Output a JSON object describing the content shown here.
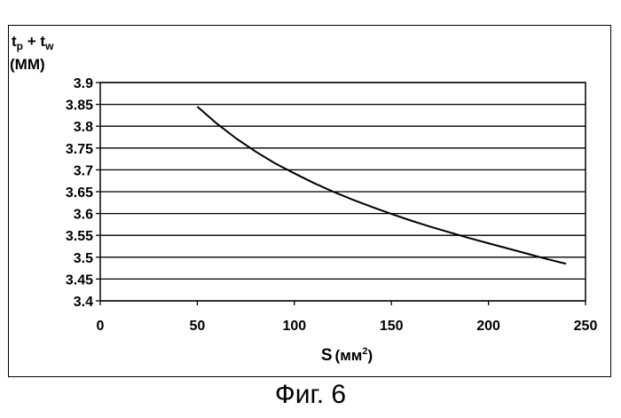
{
  "chart_data": {
    "type": "line",
    "ylabel_main": "t",
    "ylabel_sub_p": "p",
    "ylabel_plus": " + t",
    "ylabel_sub_w": "w",
    "ylabel_unit": "(ММ)",
    "xlabel_main": "S",
    "xlabel_unit": "(мм",
    "xlabel_sup": "2",
    "xlabel_close": ")",
    "xlim": [
      0,
      250
    ],
    "ylim": [
      3.4,
      3.9
    ],
    "x_ticks": [
      "0",
      "50",
      "100",
      "150",
      "200",
      "250"
    ],
    "y_ticks": [
      "3.9",
      "3.85",
      "3.8",
      "3.75",
      "3.7",
      "3.65",
      "3.6",
      "3.55",
      "3.5",
      "3.45",
      "3.4"
    ],
    "grid": "horizontal",
    "series": [
      {
        "x": [
          50,
          60,
          70,
          80,
          90,
          100,
          110,
          120,
          130,
          140,
          150,
          160,
          170,
          180,
          190,
          200,
          210,
          220,
          230,
          240
        ],
        "y": [
          3.845,
          3.806,
          3.772,
          3.742,
          3.715,
          3.692,
          3.67,
          3.65,
          3.632,
          3.615,
          3.599,
          3.584,
          3.57,
          3.557,
          3.544,
          3.532,
          3.52,
          3.508,
          3.496,
          3.485
        ]
      }
    ]
  },
  "caption": "Фиг. 6"
}
